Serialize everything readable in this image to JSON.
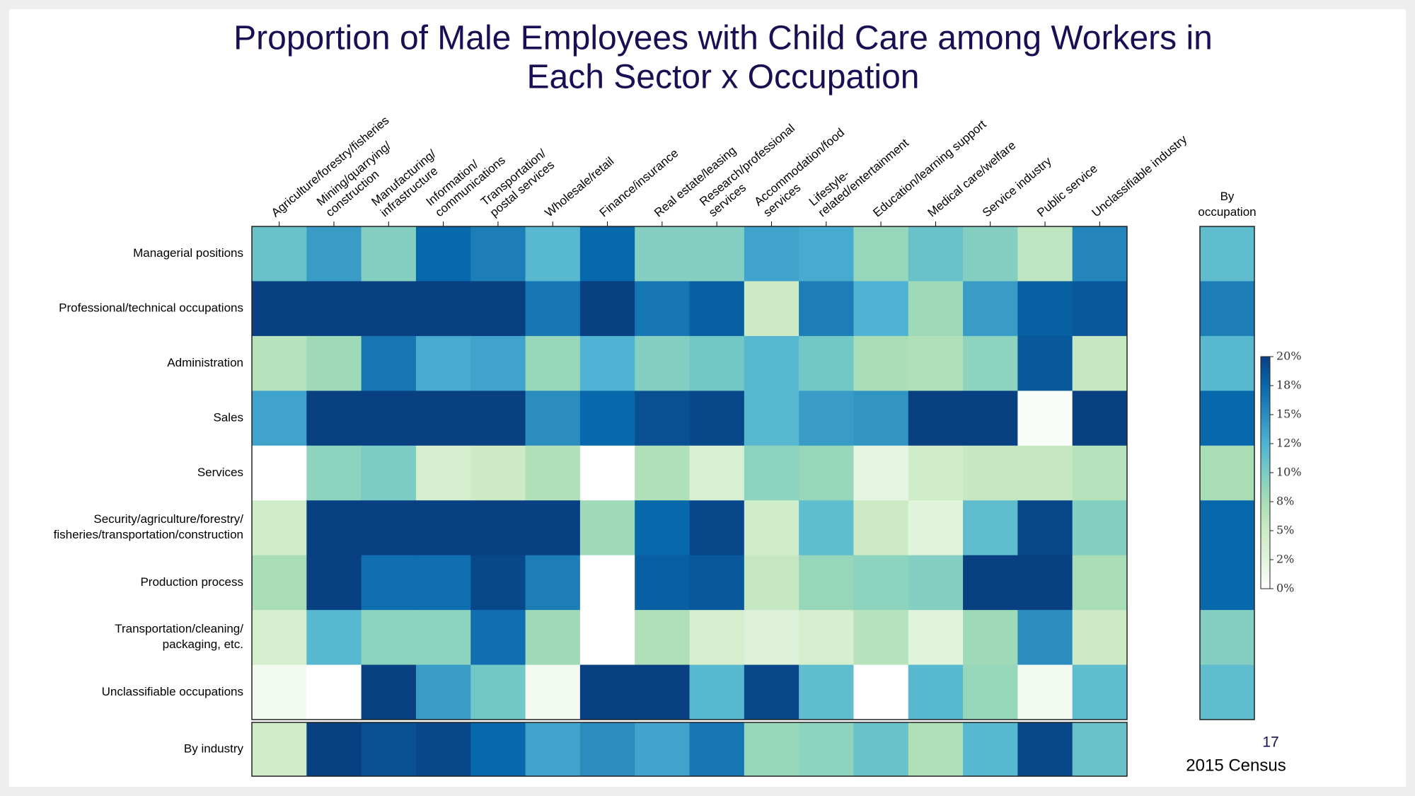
{
  "chart_data": {
    "type": "heatmap",
    "title": "Proportion of Male Employees with Child Care among Workers in\nEach Sector x Occupation",
    "x_categories": [
      "Agriculture/forestry/fisheries",
      "Mining/quarrying/\nconstruction",
      "Manufacturing/\ninfrastructure",
      "Information/\ncommunications",
      "Transportation/\npostal services",
      "Wholesale/retail",
      "Finance/insurance",
      "Real estate/leasing",
      "Research/professional\nservices",
      "Accommodation/food\nservices",
      "Lifestyle-\nrelated/entertainment",
      "Education/learning support",
      "Medical care/welfare",
      "Service industry",
      "Public service",
      "Unclassifiable industry"
    ],
    "y_categories": [
      "Managerial positions",
      "Professional/technical occupations",
      "Administration",
      "Sales",
      "Services",
      "Security/agriculture/forestry/\nfisheries/transportation/construction",
      "Production process",
      "Transportation/cleaning/\npackaging, etc.",
      "Unclassifiable occupations"
    ],
    "values": [
      [
        11,
        14,
        9.5,
        17.5,
        16,
        12,
        17.5,
        9.5,
        9.5,
        13.5,
        13,
        8.5,
        11,
        9.5,
        6,
        15.5
      ],
      [
        20,
        20,
        20,
        20,
        20,
        16.5,
        20,
        16.5,
        18,
        5,
        16,
        12.5,
        8,
        14,
        18,
        18.5
      ],
      [
        6.5,
        8,
        16.5,
        13,
        13.5,
        8.5,
        12.5,
        9.5,
        10.5,
        12,
        10.5,
        7.5,
        7,
        9,
        18.5,
        5.5
      ],
      [
        13.5,
        20,
        20,
        20,
        20,
        15,
        17.5,
        19,
        19.5,
        12,
        14,
        14.5,
        20,
        20,
        0.5,
        20
      ],
      [
        0,
        9,
        10,
        4,
        5,
        7,
        0,
        7,
        3.5,
        9,
        8.5,
        2,
        4.5,
        5.5,
        5.5,
        6.5
      ],
      [
        4.5,
        20,
        20,
        20,
        20,
        20,
        8,
        17.5,
        19.5,
        4.5,
        11.5,
        5,
        2.5,
        11.5,
        19.5,
        9.5
      ],
      [
        7.5,
        20,
        17,
        17,
        19.5,
        16,
        0,
        18,
        18.5,
        5.5,
        8.5,
        9,
        9.5,
        20,
        20,
        7.5
      ],
      [
        4,
        12,
        9,
        9,
        17,
        8,
        0,
        7,
        4,
        3,
        4,
        6.5,
        2.5,
        8,
        15,
        5
      ],
      [
        1,
        0,
        20,
        14,
        10.5,
        1,
        20,
        20,
        12,
        19.5,
        11.5,
        0,
        12,
        8.5,
        1,
        11.5
      ]
    ],
    "summary_row": {
      "label": "By industry",
      "values": [
        4.5,
        20,
        19,
        19.5,
        17.5,
        13.5,
        15,
        13.5,
        16.5,
        8.5,
        9,
        11,
        7,
        12,
        19.5,
        11
      ]
    },
    "summary_column": {
      "label": "By\noccupation",
      "values": [
        11.5,
        16,
        12,
        17.5,
        7.5,
        17.5,
        17.5,
        9.5,
        11.5
      ]
    },
    "zlim": [
      0,
      20
    ],
    "zticks": [
      {
        "value": 0,
        "label": "0%"
      },
      {
        "value": 2.5,
        "label": "2%"
      },
      {
        "value": 5,
        "label": "5%"
      },
      {
        "value": 7.5,
        "label": "8%"
      },
      {
        "value": 10,
        "label": "10%"
      },
      {
        "value": 12.5,
        "label": "12%"
      },
      {
        "value": 15,
        "label": "15%"
      },
      {
        "value": 17.5,
        "label": "18%"
      },
      {
        "value": 20,
        "label": "20%"
      }
    ],
    "colorscale": [
      "#ffffff",
      "#e0f3db",
      "#ccebc5",
      "#a8ddb5",
      "#7bccc4",
      "#4eb3d3",
      "#2b8cbe",
      "#0868ac",
      "#084081"
    ],
    "page_number": "17",
    "source": "2015 Census"
  }
}
